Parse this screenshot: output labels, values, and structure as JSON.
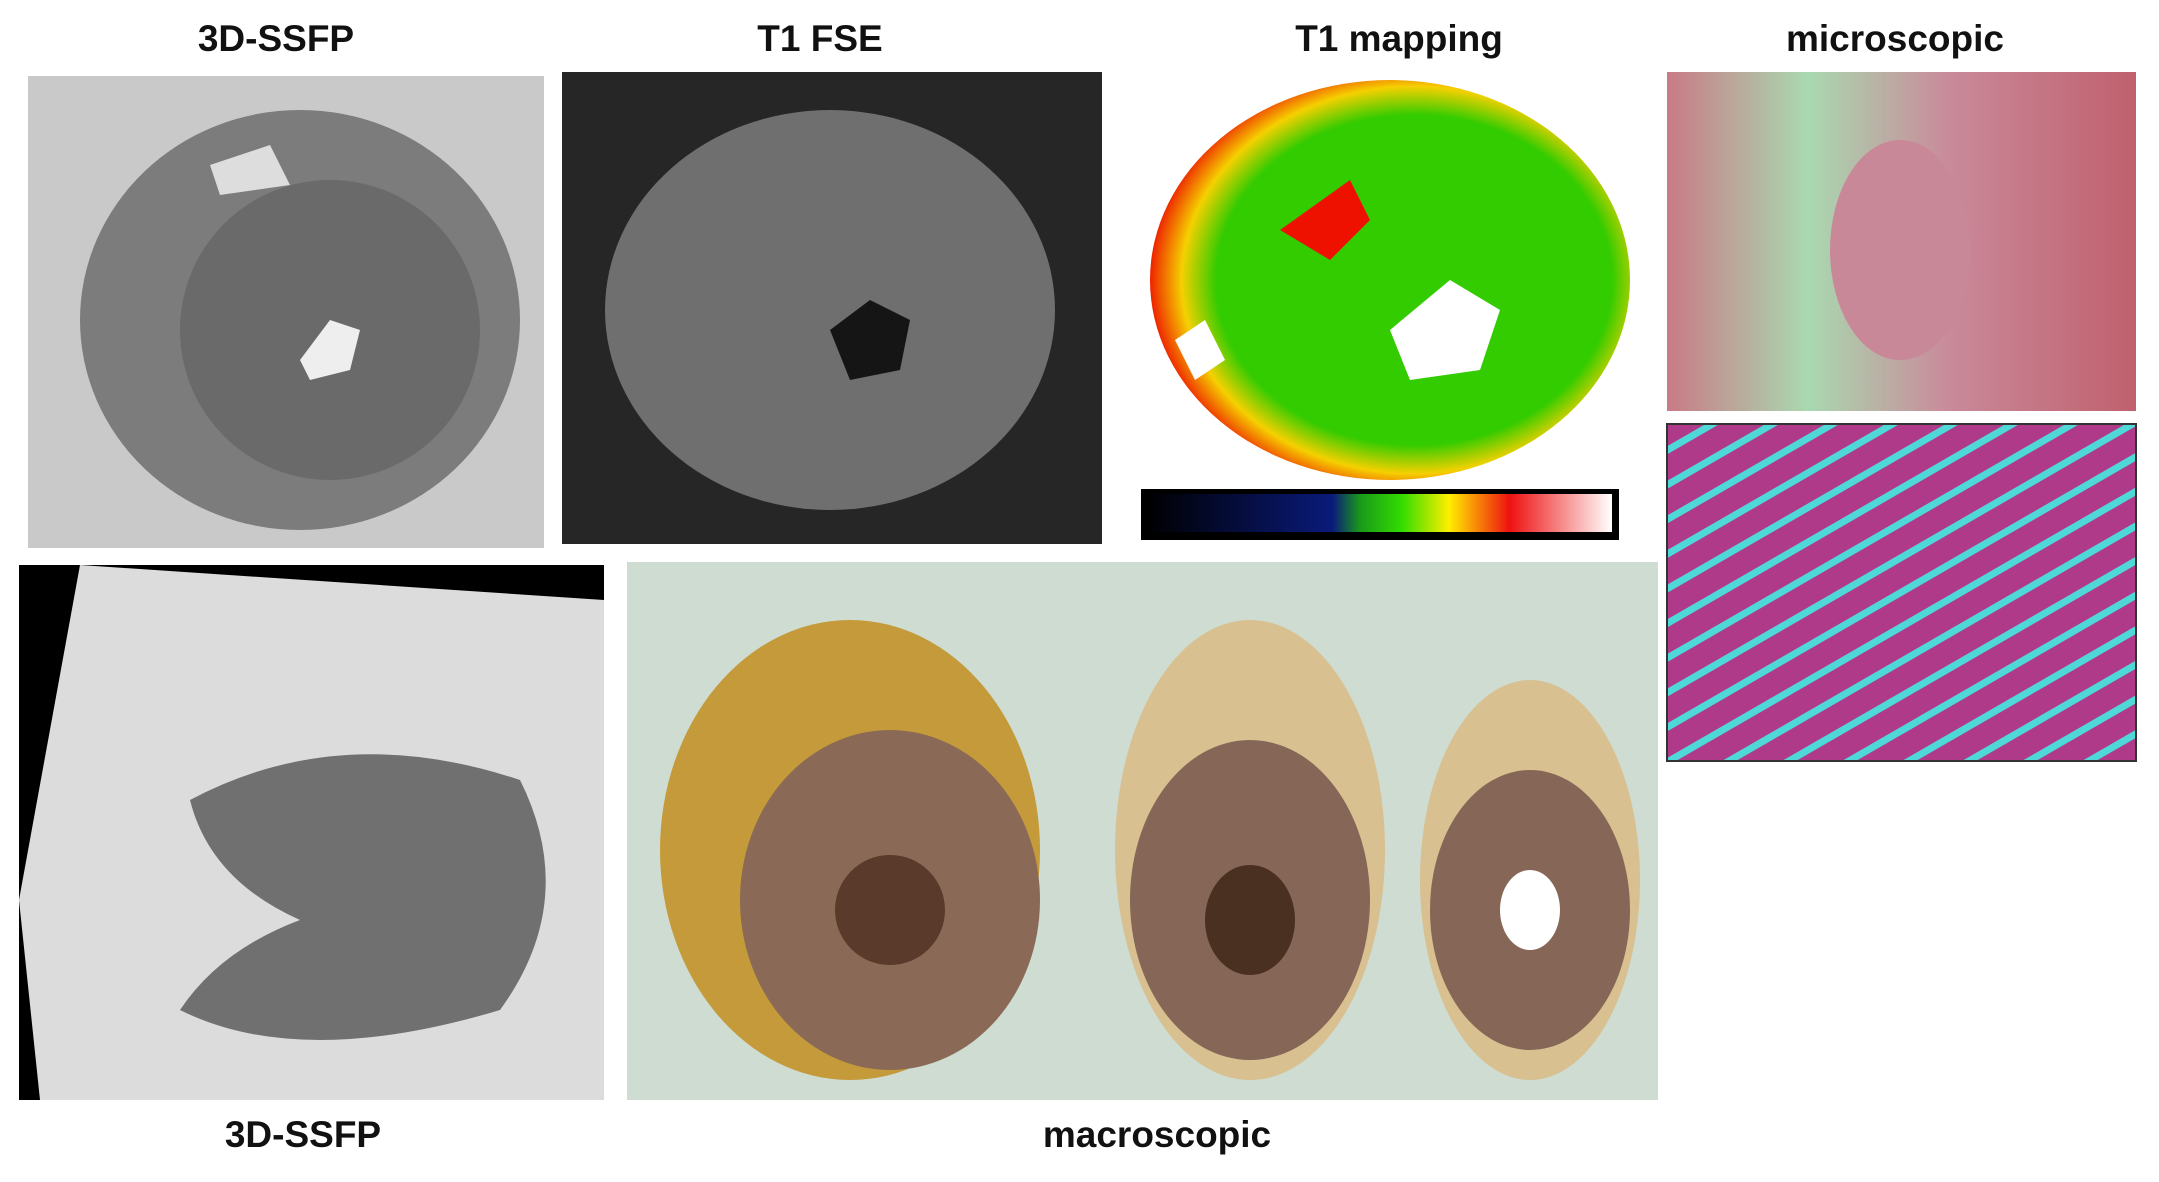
{
  "panels": [
    {
      "label": "3D-SSFP"
    },
    {
      "label": "T1 FSE"
    },
    {
      "label": "T1 mapping"
    },
    {
      "label": "microscopic"
    },
    {
      "label": "3D-SSFP"
    },
    {
      "label": "macroscopic"
    }
  ]
}
